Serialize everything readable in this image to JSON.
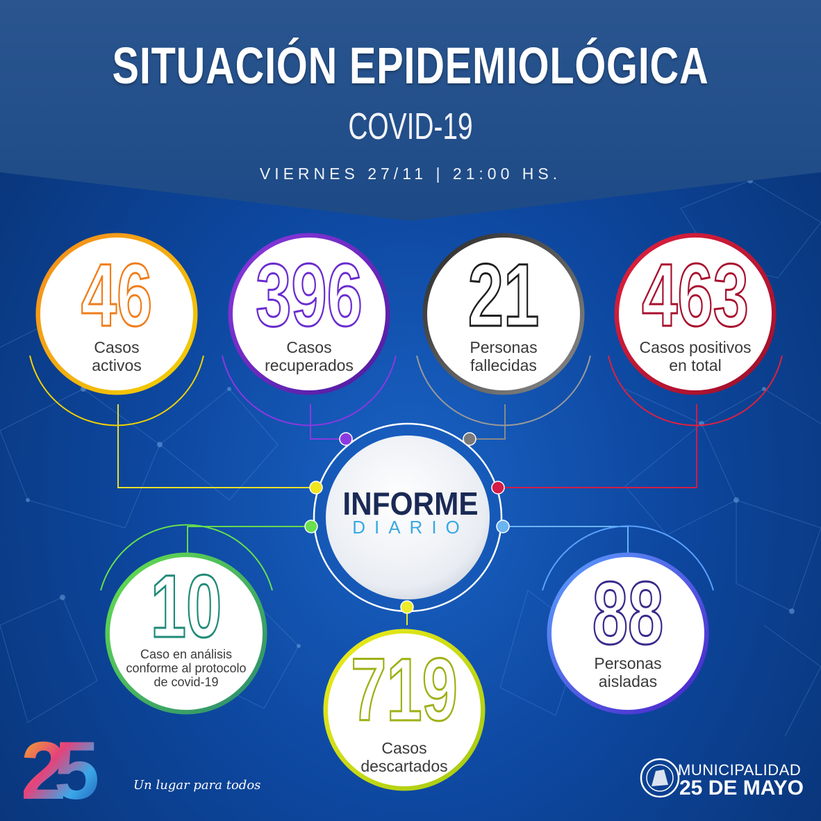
{
  "header": {
    "title": "SITUACIÓN EPIDEMIOLÓGICA",
    "subtitle": "COVID-19",
    "date": "VIERNES 27/11 | 21:00 HS."
  },
  "center": {
    "word1": "INFORME",
    "word2": "DIARIO"
  },
  "stats": [
    {
      "id": "active",
      "value": "46",
      "label": "Casos activos",
      "color": "#f07d1a"
    },
    {
      "id": "recovered",
      "value": "396",
      "label": "Casos recuperados",
      "color": "#6a2bd0"
    },
    {
      "id": "deceased",
      "value": "21",
      "label": "Personas fallecidas",
      "color": "#3d3d3d"
    },
    {
      "id": "total",
      "value": "463",
      "label": "Casos positivos en total",
      "color": "#c8163c"
    },
    {
      "id": "analysis",
      "value": "10",
      "label": "Caso en análisis conforme al protocolo de covid-19",
      "color": "#1f8a78"
    },
    {
      "id": "discarded",
      "value": "719",
      "label": "Casos descartados",
      "color": "#b9cc17"
    },
    {
      "id": "isolated",
      "value": "88",
      "label": "Personas aisladas",
      "color": "#3a2a8a"
    }
  ],
  "footer": {
    "logo_number": "25",
    "tagline": "Un lugar para todos",
    "municipality_line1": "MUNICIPALIDAD",
    "municipality_line2": "25 DE MAYO"
  }
}
